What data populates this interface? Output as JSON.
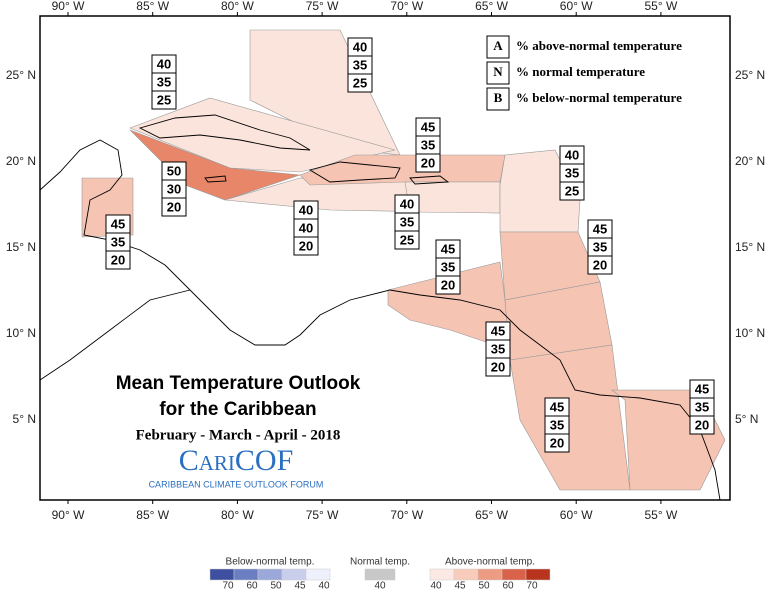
{
  "map": {
    "lon_labels": [
      "90° W",
      "85° W",
      "80° W",
      "75° W",
      "70° W",
      "65° W",
      "60° W",
      "55° W"
    ],
    "lat_labels": [
      "25° N",
      "20° N",
      "15° N",
      "10° N",
      "5° N"
    ],
    "key": [
      {
        "letter": "A",
        "text": "% above-normal temperature"
      },
      {
        "letter": "N",
        "text": "% normal temperature"
      },
      {
        "letter": "B",
        "text": "% below-normal temperature"
      }
    ],
    "title": [
      "Mean Temperature Outlook",
      "for the Caribbean"
    ],
    "period": "February - March - April - 2018",
    "logo": "CariCOF",
    "logo_subtitle": "CARIBBEAN CLIMATE OUTLOOK FORUM",
    "regions": [
      {
        "values": [
          40,
          35,
          25
        ],
        "color": "#fbe4dc"
      },
      {
        "values": [
          40,
          35,
          25
        ],
        "color": "#fbe4dc"
      },
      {
        "values": [
          50,
          30,
          20
        ],
        "color": "#e8866a"
      },
      {
        "values": [
          45,
          35,
          20
        ],
        "color": "#f5c4b3"
      },
      {
        "values": [
          40,
          40,
          20
        ],
        "color": "#fbe4dc"
      },
      {
        "values": [
          45,
          35,
          20
        ],
        "color": "#f5c4b3"
      },
      {
        "values": [
          40,
          35,
          25
        ],
        "color": "#fbe4dc"
      },
      {
        "values": [
          40,
          35,
          25
        ],
        "color": "#fbe4dc"
      },
      {
        "values": [
          45,
          35,
          20
        ],
        "color": "#f5c4b3"
      },
      {
        "values": [
          45,
          35,
          20
        ],
        "color": "#f5c4b3"
      },
      {
        "values": [
          45,
          35,
          20
        ],
        "color": "#f5c4b3"
      },
      {
        "values": [
          45,
          35,
          20
        ],
        "color": "#f5c4b3"
      },
      {
        "values": [
          45,
          35,
          20
        ],
        "color": "#f5c4b3"
      }
    ]
  },
  "legend": [
    {
      "title": "Below-normal temp.",
      "ticks": [
        70,
        60,
        50,
        45,
        40
      ],
      "colors": [
        "#3f4f9f",
        "#6b7ec1",
        "#9ba8d9",
        "#c8ceec",
        "#eef0fb"
      ]
    },
    {
      "title": "Normal temp.",
      "ticks": [
        40
      ],
      "colors": [
        "#c8c8c8"
      ]
    },
    {
      "title": "Above-normal temp.",
      "ticks": [
        40,
        45,
        50,
        60,
        70
      ],
      "colors": [
        "#fde9e3",
        "#f8cbbb",
        "#ec9c82",
        "#d9624a",
        "#b8341f"
      ]
    }
  ]
}
